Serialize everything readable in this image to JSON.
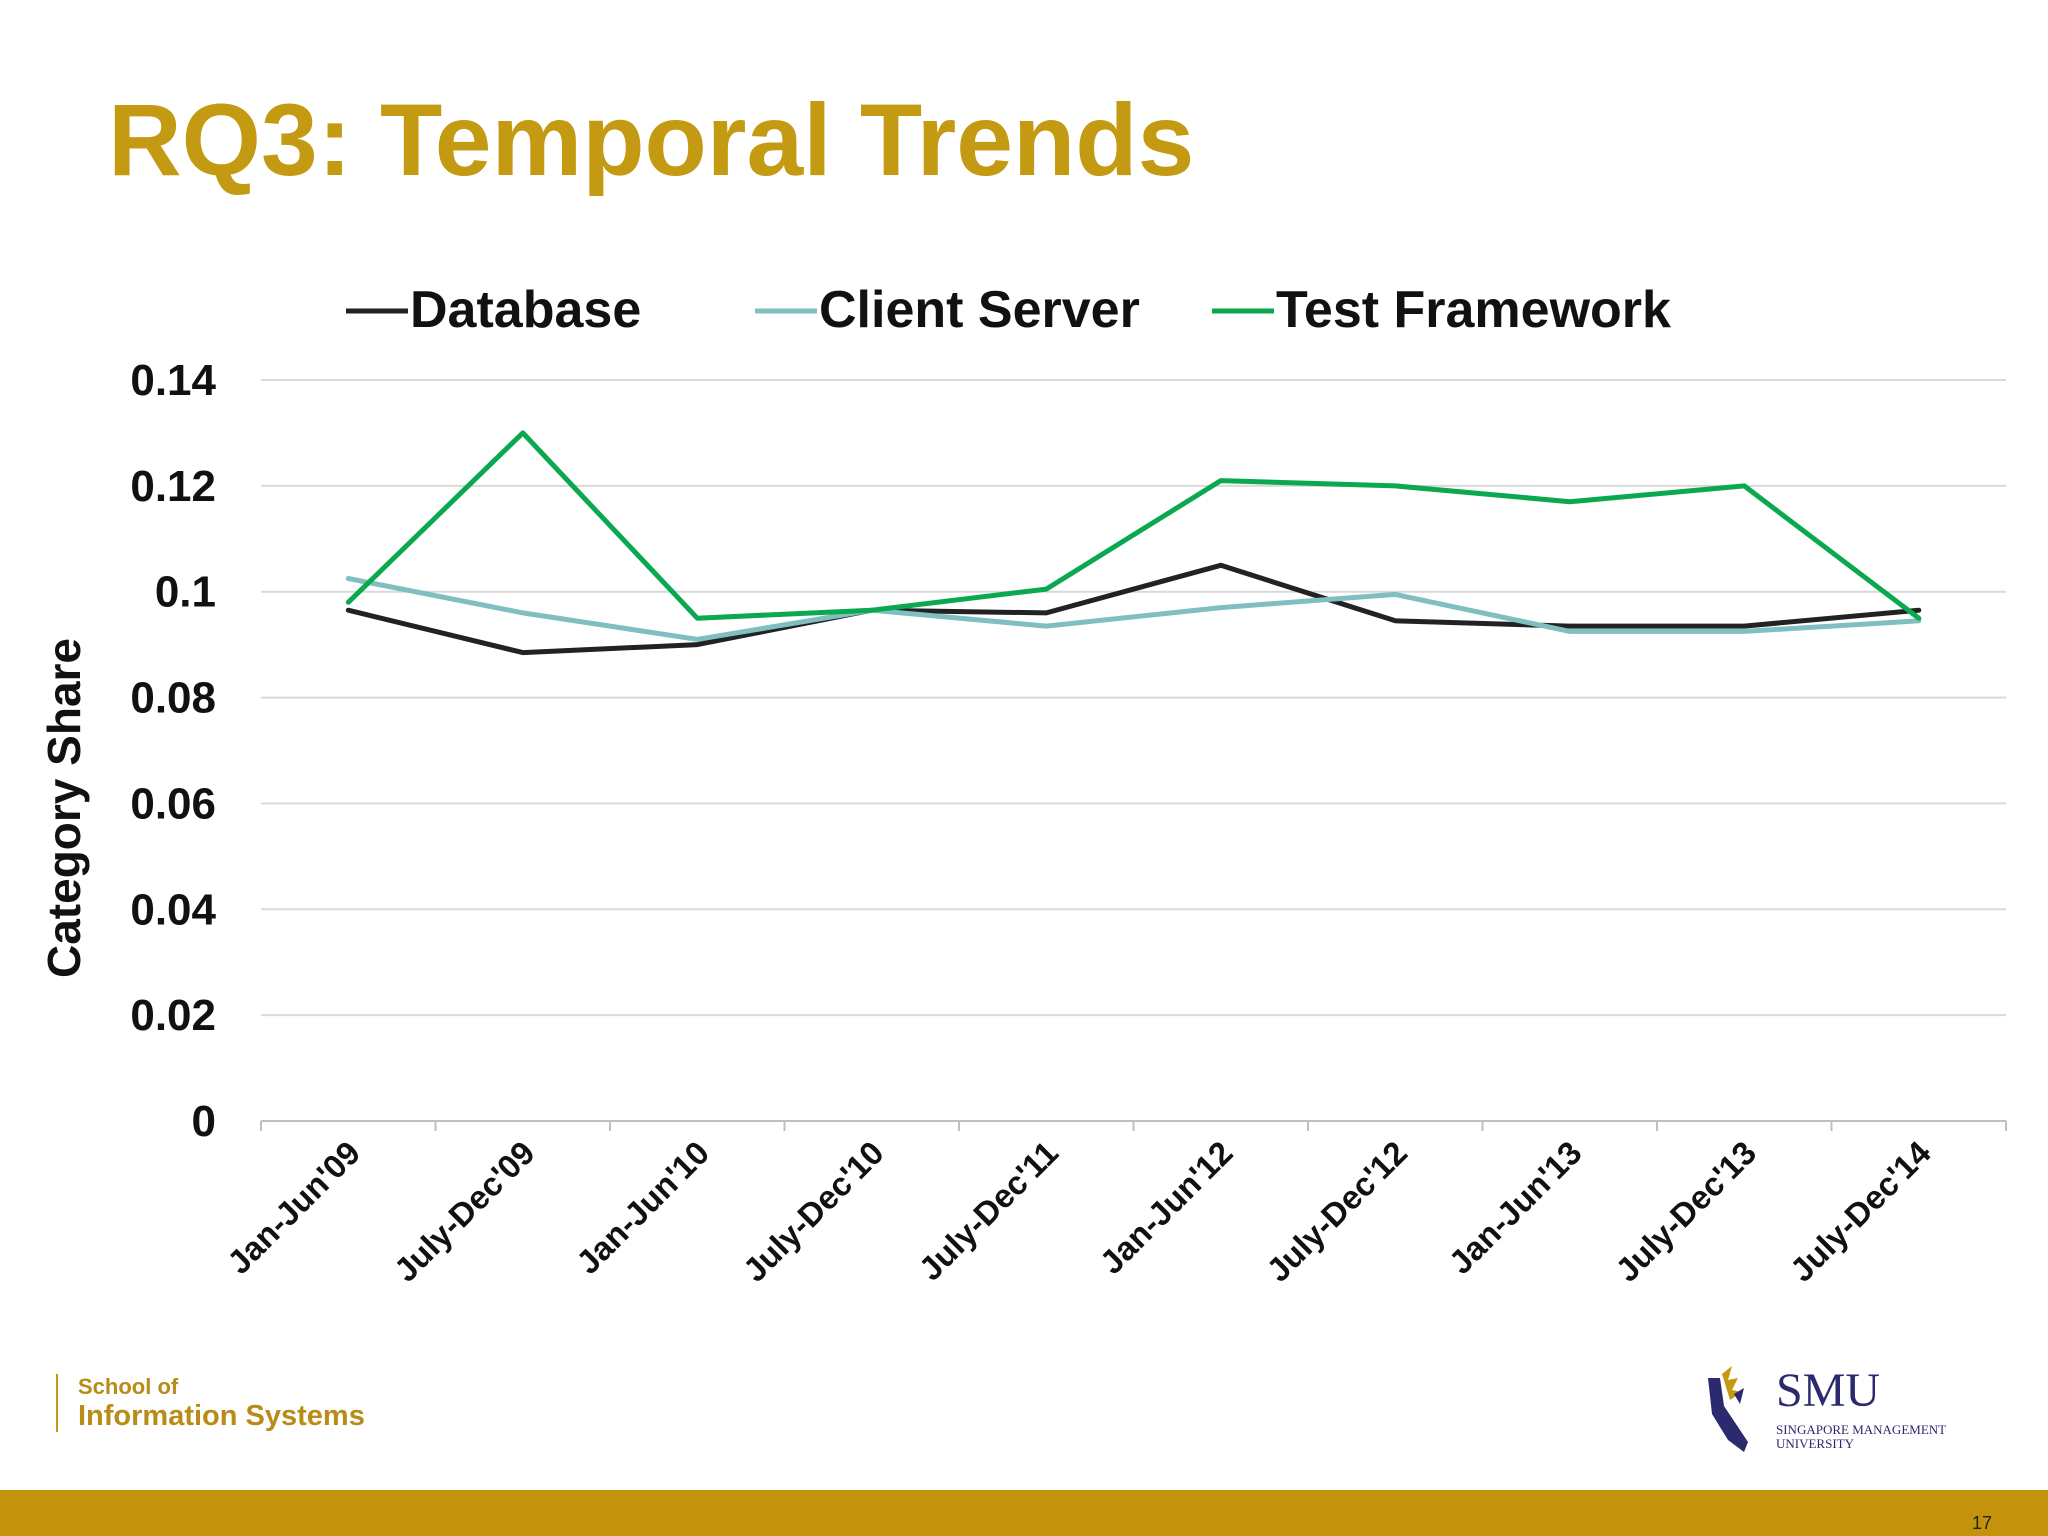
{
  "slide": {
    "title": "RQ3: Temporal Trends",
    "page_number": "17",
    "school_line1": "School of",
    "school_line2": "Information Systems",
    "university_logo_text": "SMU",
    "university_name_line1": "SINGAPORE MANAGEMENT",
    "university_name_line2": "UNIVERSITY"
  },
  "colors": {
    "title": "#c39a12",
    "footer_bar": "#c3930b",
    "database": "#222222",
    "client_server": "#7fbfbf",
    "test_framework": "#0aa84f",
    "gridline": "#d9d9d9"
  },
  "chart_data": {
    "type": "line",
    "title": "",
    "xlabel": "",
    "ylabel": "Category Share",
    "categories": [
      "Jan-Jun'09",
      "July-Dec'09",
      "Jan-Jun'10",
      "July-Dec'10",
      "July-Dec'11",
      "Jan-Jun'12",
      "July-Dec'12",
      "Jan-Jun'13",
      "July-Dec'13",
      "July-Dec'14"
    ],
    "ylim": [
      0,
      0.14
    ],
    "yticks": [
      "0",
      "0.02",
      "0.04",
      "0.06",
      "0.08",
      "0.1",
      "0.12",
      "0.14"
    ],
    "grid": true,
    "legend_position": "top",
    "series": [
      {
        "name": "Database",
        "values": [
          0.0965,
          0.0885,
          0.09,
          0.0965,
          0.096,
          0.105,
          0.0945,
          0.0935,
          0.0935,
          0.0965
        ]
      },
      {
        "name": "Client Server",
        "values": [
          0.1025,
          0.096,
          0.091,
          0.0965,
          0.0935,
          0.097,
          0.0995,
          0.0925,
          0.0925,
          0.0945
        ]
      },
      {
        "name": "Test Framework",
        "values": [
          0.098,
          0.13,
          0.095,
          0.0965,
          0.1005,
          0.121,
          0.12,
          0.117,
          0.12,
          0.095
        ]
      }
    ]
  }
}
